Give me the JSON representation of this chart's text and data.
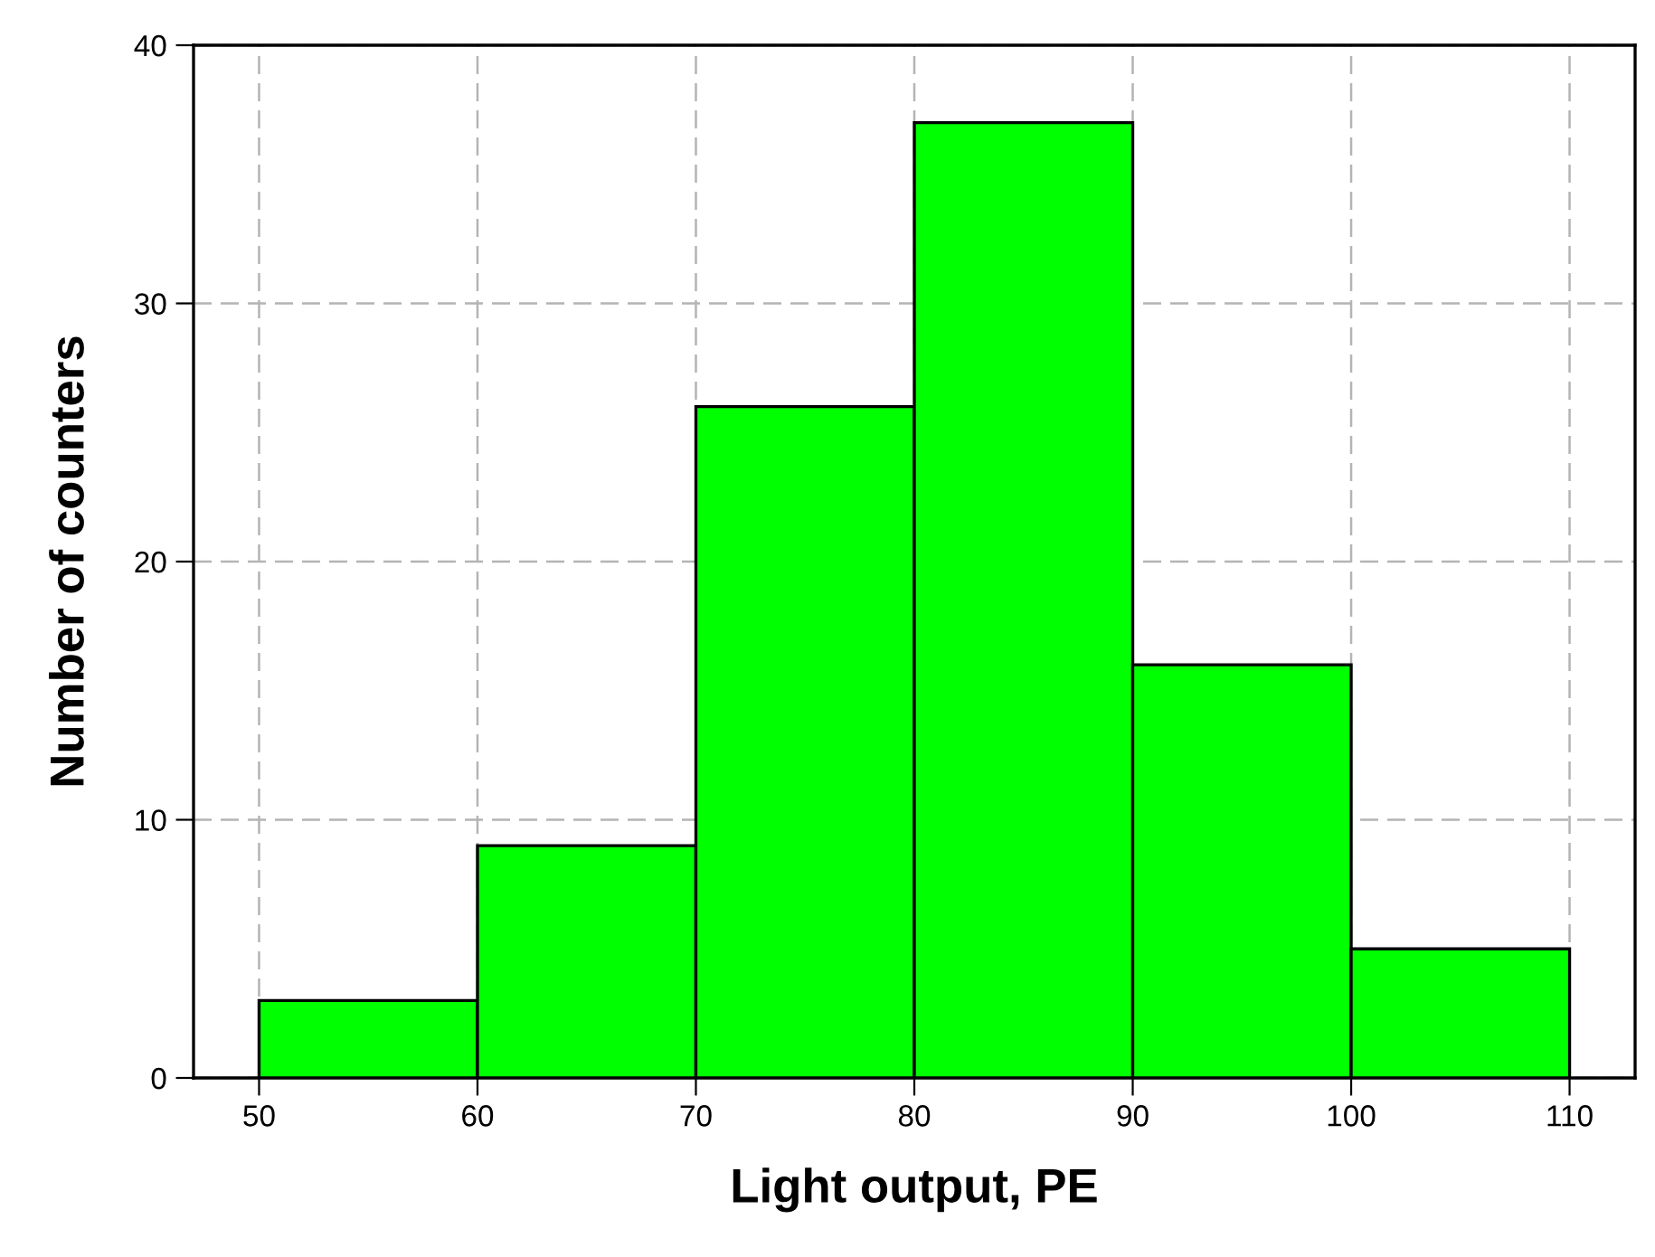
{
  "chart_data": {
    "type": "histogram",
    "xlabel": "Light output, PE",
    "ylabel": "Number of counters",
    "bins": [
      50,
      60,
      70,
      80,
      90,
      100,
      110
    ],
    "values": [
      3,
      9,
      26,
      37,
      16,
      5
    ],
    "color": "#00ff00",
    "xlim": [
      47,
      113
    ],
    "ylim": [
      0,
      40
    ],
    "xticks": [
      50,
      60,
      70,
      80,
      90,
      100,
      110
    ],
    "yticks": [
      0,
      10,
      20,
      30,
      40
    ],
    "grid": true
  }
}
